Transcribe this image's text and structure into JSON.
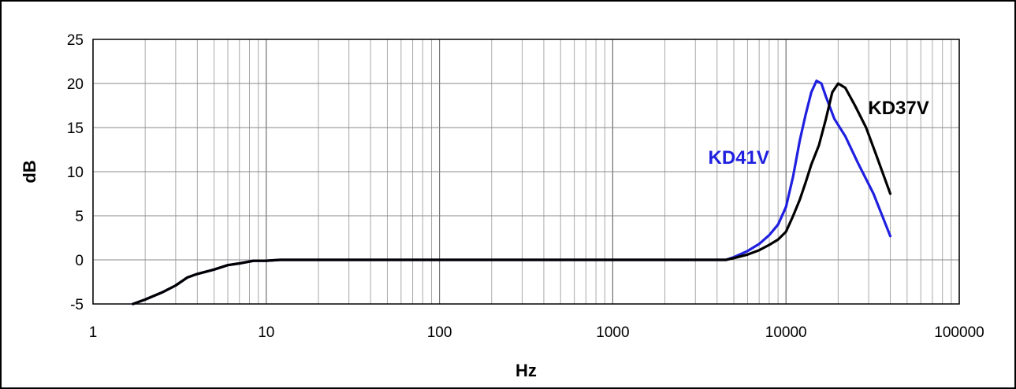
{
  "chart_data": {
    "type": "line",
    "title": "",
    "xlabel": "Hz",
    "ylabel": "dB",
    "x_scale": "log",
    "xlim": [
      1,
      100000
    ],
    "ylim": [
      -5,
      25
    ],
    "x_ticks": [
      1,
      10,
      100,
      1000,
      10000,
      100000
    ],
    "x_tick_labels": [
      "1",
      "10",
      "100",
      "1000",
      "10000",
      "100000"
    ],
    "y_ticks": [
      -5,
      0,
      5,
      10,
      15,
      20,
      25
    ],
    "y_tick_labels": [
      "-5",
      "0",
      "5",
      "10",
      "15",
      "20",
      "25"
    ],
    "grid": true,
    "series": [
      {
        "name": "KD41V",
        "color": "#1f1fe0",
        "label_position": "left-of-peak",
        "points": [
          [
            1.7,
            -5.0
          ],
          [
            2.0,
            -4.5
          ],
          [
            2.5,
            -3.7
          ],
          [
            3.0,
            -2.9
          ],
          [
            3.5,
            -2.0
          ],
          [
            4.0,
            -1.6
          ],
          [
            5.0,
            -1.1
          ],
          [
            6.0,
            -0.6
          ],
          [
            7.0,
            -0.4
          ],
          [
            8.5,
            -0.1
          ],
          [
            10,
            -0.1
          ],
          [
            12,
            0
          ],
          [
            100,
            0
          ],
          [
            1000,
            0
          ],
          [
            4500,
            0
          ],
          [
            5000,
            0.3
          ],
          [
            6000,
            1.0
          ],
          [
            7000,
            1.8
          ],
          [
            8000,
            2.8
          ],
          [
            9000,
            4.0
          ],
          [
            10000,
            6.0
          ],
          [
            11000,
            9.5
          ],
          [
            12000,
            13.5
          ],
          [
            13000,
            16.5
          ],
          [
            14000,
            19.0
          ],
          [
            15000,
            20.3
          ],
          [
            16000,
            20.0
          ],
          [
            17000,
            18.5
          ],
          [
            19000,
            16.0
          ],
          [
            22000,
            14.0
          ],
          [
            26000,
            11.0
          ],
          [
            32000,
            7.5
          ],
          [
            40000,
            2.7
          ]
        ]
      },
      {
        "name": "KD37V",
        "color": "#000000",
        "label_position": "right-of-peak",
        "points": [
          [
            1.7,
            -5.0
          ],
          [
            2.0,
            -4.5
          ],
          [
            2.5,
            -3.7
          ],
          [
            3.0,
            -2.9
          ],
          [
            3.5,
            -2.0
          ],
          [
            4.0,
            -1.6
          ],
          [
            5.0,
            -1.1
          ],
          [
            6.0,
            -0.6
          ],
          [
            7.0,
            -0.4
          ],
          [
            8.5,
            -0.1
          ],
          [
            10,
            -0.1
          ],
          [
            12,
            0
          ],
          [
            100,
            0
          ],
          [
            1000,
            0
          ],
          [
            4500,
            0
          ],
          [
            5000,
            0.2
          ],
          [
            6000,
            0.6
          ],
          [
            7000,
            1.1
          ],
          [
            8000,
            1.7
          ],
          [
            9000,
            2.3
          ],
          [
            10000,
            3.2
          ],
          [
            11000,
            5.0
          ],
          [
            12000,
            6.8
          ],
          [
            13000,
            8.8
          ],
          [
            14000,
            10.8
          ],
          [
            15500,
            13.0
          ],
          [
            17000,
            16.0
          ],
          [
            18500,
            19.0
          ],
          [
            20000,
            20.0
          ],
          [
            22000,
            19.5
          ],
          [
            25000,
            17.5
          ],
          [
            29000,
            15.0
          ],
          [
            33000,
            12.0
          ],
          [
            40000,
            7.5
          ]
        ]
      }
    ]
  }
}
